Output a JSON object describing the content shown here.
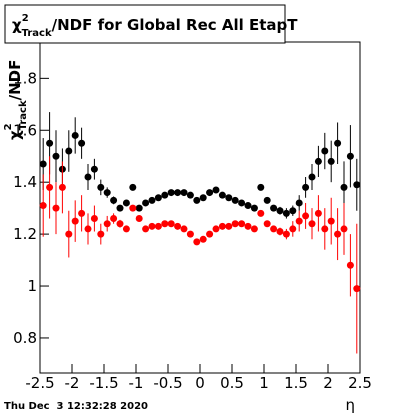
{
  "chart_data": {
    "type": "scatter",
    "title": {
      "symbol": "χ",
      "sup": "2",
      "sub": "Track",
      "rest": "/NDF for Global Rec All EtapT"
    },
    "y_label": {
      "symbol": "χ",
      "sup": "2",
      "sub": "Track",
      "rest": "/NDF"
    },
    "x_label": "η",
    "timestamp": "Thu Dec  3 12:32:28 2020",
    "xlim": [
      -2.5,
      2.5
    ],
    "ylim": [
      0.665,
      1.94
    ],
    "xticks": [
      -2.5,
      -2,
      -1.5,
      -1,
      -0.5,
      0,
      0.5,
      1,
      1.5,
      2,
      2.5
    ],
    "yticks": [
      0.8,
      1,
      1.2,
      1.4,
      1.6,
      1.8
    ],
    "x": [
      -2.45,
      -2.35,
      -2.25,
      -2.15,
      -2.05,
      -1.95,
      -1.85,
      -1.75,
      -1.65,
      -1.55,
      -1.45,
      -1.35,
      -1.25,
      -1.15,
      -1.05,
      -0.95,
      -0.85,
      -0.75,
      -0.65,
      -0.55,
      -0.45,
      -0.35,
      -0.25,
      -0.15,
      -0.05,
      0.05,
      0.15,
      0.25,
      0.35,
      0.45,
      0.55,
      0.65,
      0.75,
      0.85,
      0.95,
      1.05,
      1.15,
      1.25,
      1.35,
      1.45,
      1.55,
      1.65,
      1.75,
      1.85,
      1.95,
      2.05,
      2.15,
      2.25,
      2.35,
      2.45
    ],
    "series": [
      {
        "color": "#000000",
        "values": [
          1.47,
          1.55,
          1.5,
          1.45,
          1.52,
          1.58,
          1.55,
          1.42,
          1.45,
          1.38,
          1.36,
          1.33,
          1.3,
          1.32,
          1.38,
          1.3,
          1.32,
          1.33,
          1.34,
          1.35,
          1.36,
          1.36,
          1.36,
          1.35,
          1.33,
          1.34,
          1.36,
          1.37,
          1.35,
          1.34,
          1.33,
          1.32,
          1.31,
          1.3,
          1.38,
          1.33,
          1.3,
          1.29,
          1.28,
          1.29,
          1.32,
          1.38,
          1.42,
          1.48,
          1.52,
          1.48,
          1.55,
          1.38,
          1.5,
          1.39
        ],
        "errors": [
          0.1,
          0.12,
          0.1,
          0.08,
          0.08,
          0.07,
          0.06,
          0.05,
          0.04,
          0.03,
          0.02,
          0.015,
          0.01,
          0.01,
          0.01,
          0.008,
          0.006,
          0.005,
          0.005,
          0.005,
          0.005,
          0.005,
          0.005,
          0.005,
          0.005,
          0.005,
          0.005,
          0.005,
          0.005,
          0.005,
          0.005,
          0.005,
          0.006,
          0.008,
          0.01,
          0.01,
          0.01,
          0.015,
          0.02,
          0.02,
          0.03,
          0.04,
          0.05,
          0.06,
          0.07,
          0.08,
          0.08,
          0.1,
          0.12,
          0.1
        ]
      },
      {
        "color": "#ff0000",
        "values": [
          1.31,
          1.38,
          1.3,
          1.38,
          1.2,
          1.25,
          1.28,
          1.22,
          1.26,
          1.2,
          1.24,
          1.26,
          1.24,
          1.22,
          1.3,
          1.26,
          1.22,
          1.23,
          1.23,
          1.24,
          1.24,
          1.23,
          1.22,
          1.2,
          1.17,
          1.18,
          1.2,
          1.22,
          1.23,
          1.23,
          1.24,
          1.24,
          1.23,
          1.22,
          1.28,
          1.24,
          1.22,
          1.21,
          1.2,
          1.22,
          1.25,
          1.27,
          1.24,
          1.28,
          1.22,
          1.25,
          1.2,
          1.22,
          1.08,
          0.99
        ],
        "errors": [
          0.12,
          0.12,
          0.1,
          0.1,
          0.09,
          0.08,
          0.07,
          0.06,
          0.05,
          0.04,
          0.03,
          0.02,
          0.015,
          0.01,
          0.01,
          0.008,
          0.006,
          0.005,
          0.005,
          0.005,
          0.005,
          0.005,
          0.005,
          0.005,
          0.005,
          0.005,
          0.005,
          0.005,
          0.005,
          0.005,
          0.005,
          0.005,
          0.006,
          0.008,
          0.01,
          0.01,
          0.01,
          0.015,
          0.02,
          0.03,
          0.04,
          0.05,
          0.06,
          0.07,
          0.08,
          0.09,
          0.1,
          0.1,
          0.12,
          0.25
        ]
      }
    ]
  }
}
